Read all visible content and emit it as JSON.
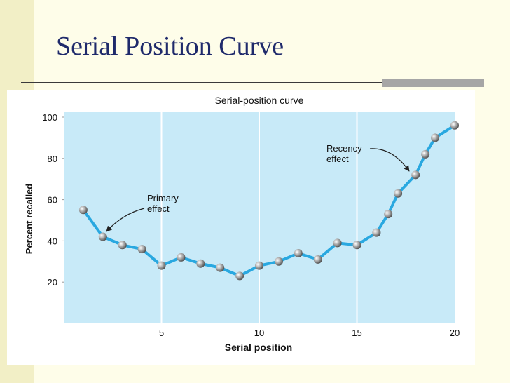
{
  "slide": {
    "title": "Serial Position Curve"
  },
  "chart_data": {
    "type": "line",
    "title": "Serial-position curve",
    "x_label": "Serial position",
    "y_label": "Percent recalled",
    "x": [
      1,
      2,
      3,
      4,
      5,
      6,
      7,
      8,
      9,
      10,
      11,
      12,
      13,
      14,
      15,
      16,
      16.6,
      17.1,
      18,
      18.5,
      19,
      20
    ],
    "series": [
      {
        "color": "#29a8e0",
        "values": [
          55,
          42,
          38,
          36,
          28,
          32,
          29,
          27,
          23,
          28,
          30,
          34,
          31,
          39,
          38,
          44,
          53,
          63,
          72,
          82,
          90,
          96
        ]
      }
    ],
    "xlim": [
      0,
      20
    ],
    "xticks": [
      5,
      10,
      15,
      20
    ],
    "ylim": [
      0,
      100
    ],
    "yticks": [
      20,
      40,
      60,
      80,
      100
    ],
    "grid": true,
    "annotations": [
      {
        "lines": [
          "Primary",
          "effect"
        ]
      },
      {
        "lines": [
          "Recency",
          "effect"
        ]
      }
    ]
  }
}
